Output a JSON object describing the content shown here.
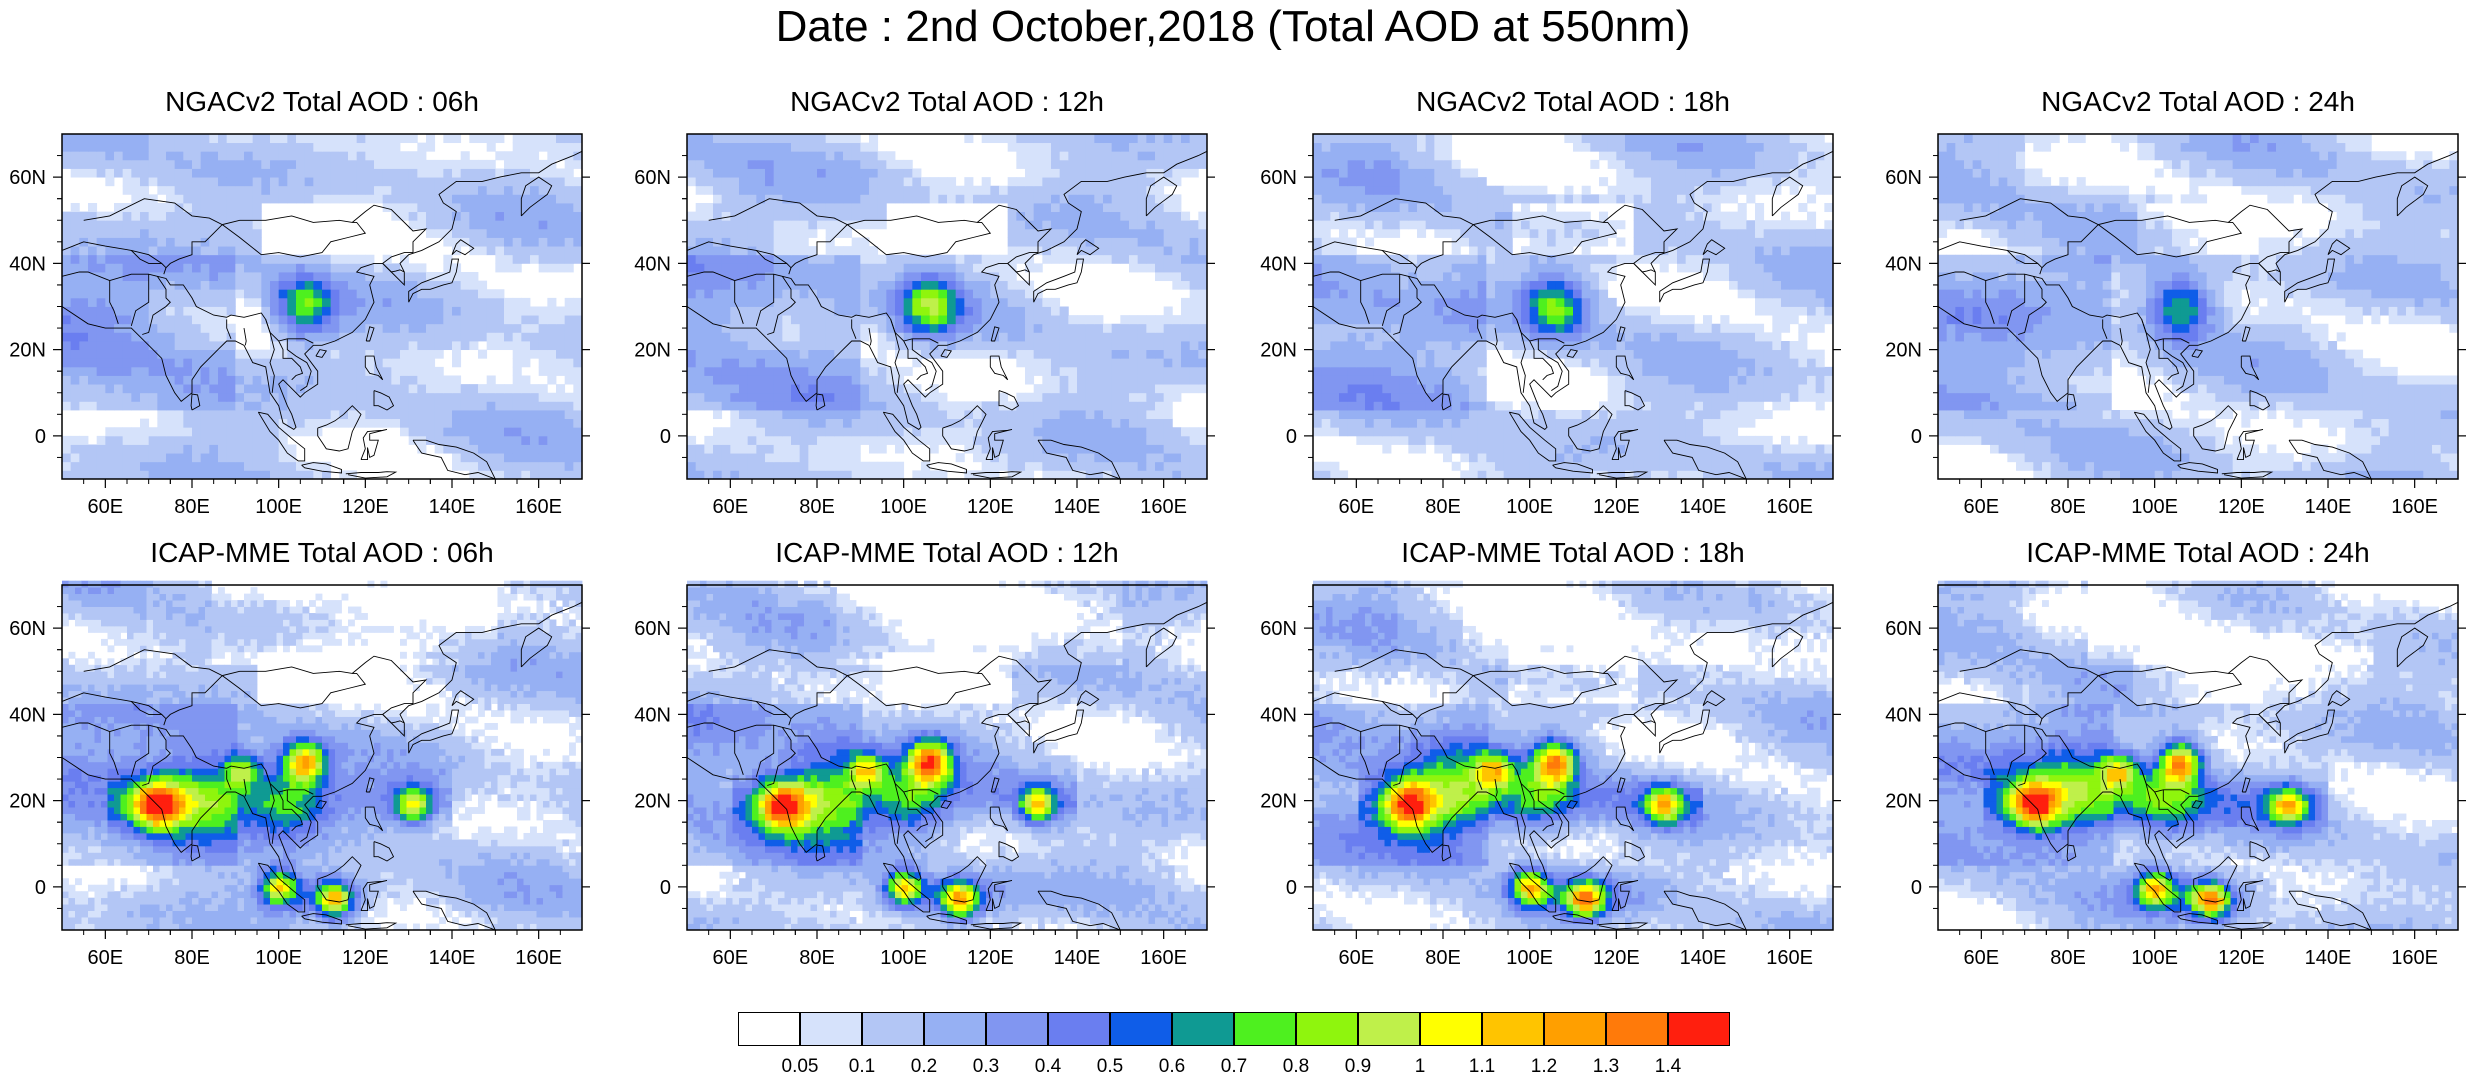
{
  "title": "Date : 2nd October,2018 (Total AOD at 550nm)",
  "colors": {
    "land_outline": "#000000",
    "frame": "#000000",
    "background": "#ffffff"
  },
  "map_axes": {
    "x_ticks": [
      "60E",
      "80E",
      "100E",
      "120E",
      "140E",
      "160E"
    ],
    "y_ticks": [
      "60N",
      "40N",
      "20N",
      "0"
    ],
    "lon_range": [
      50,
      170
    ],
    "lat_range": [
      -10,
      70
    ]
  },
  "panels": [
    {
      "title": "NGACv2 Total AOD : 06h",
      "model": "NGACv2",
      "hour": "06h"
    },
    {
      "title": "NGACv2 Total AOD : 12h",
      "model": "NGACv2",
      "hour": "12h"
    },
    {
      "title": "NGACv2 Total AOD : 18h",
      "model": "NGACv2",
      "hour": "18h"
    },
    {
      "title": "NGACv2 Total AOD : 24h",
      "model": "NGACv2",
      "hour": "24h"
    },
    {
      "title": "ICAP-MME Total AOD : 06h",
      "model": "ICAP-MME",
      "hour": "06h"
    },
    {
      "title": "ICAP-MME Total AOD : 12h",
      "model": "ICAP-MME",
      "hour": "12h"
    },
    {
      "title": "ICAP-MME Total AOD : 18h",
      "model": "ICAP-MME",
      "hour": "18h"
    },
    {
      "title": "ICAP-MME Total AOD : 24h",
      "model": "ICAP-MME",
      "hour": "24h"
    }
  ],
  "colorbar": {
    "labels": [
      "0.05",
      "0.1",
      "0.2",
      "0.3",
      "0.4",
      "0.5",
      "0.6",
      "0.7",
      "0.8",
      "0.9",
      "1",
      "1.1",
      "1.2",
      "1.3",
      "1.4"
    ],
    "colors": [
      "#ffffff",
      "#d6e2fb",
      "#b3c6f5",
      "#96b0f3",
      "#8196f1",
      "#6a7ef0",
      "#0f5de8",
      "#0f9a93",
      "#4ef01f",
      "#8ff50d",
      "#bff04a",
      "#ffff00",
      "#ffc400",
      "#ff9f00",
      "#ff7a0a",
      "#ff1f0e"
    ]
  }
}
